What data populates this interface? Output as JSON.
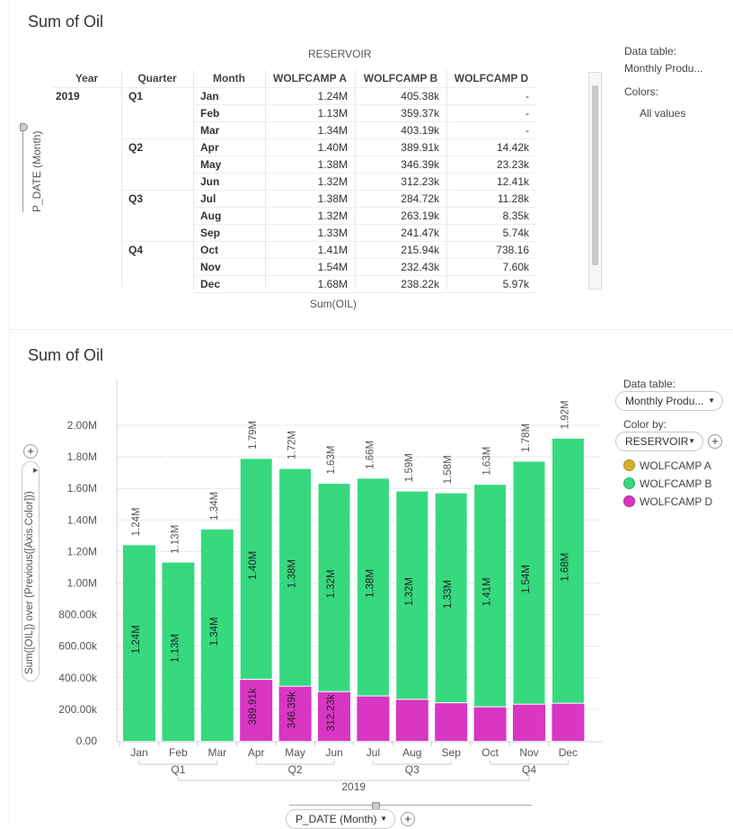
{
  "table_panel": {
    "title": "Sum of Oil",
    "column_group_header": "RESERVOIR",
    "headers": [
      "Year",
      "Quarter",
      "Month",
      "WOLFCAMP A",
      "WOLFCAMP B",
      "WOLFCAMP D"
    ],
    "row_axis_label": "P_DATE (Month)",
    "footer": "Sum(OIL)",
    "year": "2019",
    "quarters": [
      "Q1",
      "Q2",
      "Q3",
      "Q4"
    ],
    "rows": [
      [
        "Jan",
        "1.24M",
        "405.38k",
        "-"
      ],
      [
        "Feb",
        "1.13M",
        "359.37k",
        "-"
      ],
      [
        "Mar",
        "1.34M",
        "403.19k",
        "-"
      ],
      [
        "Apr",
        "1.40M",
        "389.91k",
        "14.42k"
      ],
      [
        "May",
        "1.38M",
        "346.39k",
        "23.23k"
      ],
      [
        "Jun",
        "1.32M",
        "312.23k",
        "12.41k"
      ],
      [
        "Jul",
        "1.38M",
        "284.72k",
        "11.28k"
      ],
      [
        "Aug",
        "1.32M",
        "263.19k",
        "8.35k"
      ],
      [
        "Sep",
        "1.33M",
        "241.47k",
        "5.74k"
      ],
      [
        "Oct",
        "1.41M",
        "215.94k",
        "738.16"
      ],
      [
        "Nov",
        "1.54M",
        "232.43k",
        "7.60k"
      ],
      [
        "Dec",
        "1.68M",
        "238.22k",
        "5.97k"
      ]
    ],
    "side": {
      "data_table_label": "Data table:",
      "data_table_value": "Monthly Produ...",
      "colors_label": "Colors:",
      "colors_value": "All values"
    }
  },
  "chart_panel": {
    "title": "Sum of Oil",
    "side": {
      "data_table_label": "Data table:",
      "data_table_value": "Monthly Produ...",
      "color_by_label": "Color by:",
      "color_by_value": "RESERVOIR"
    },
    "legend": [
      {
        "name": "WOLFCAMP A",
        "color": "#d4b02a"
      },
      {
        "name": "WOLFCAMP B",
        "color": "#37d97f"
      },
      {
        "name": "WOLFCAMP D",
        "color": "#d936c3"
      }
    ],
    "x_axis_selector": "P_DATE (Month)"
  },
  "chart_data": {
    "type": "bar",
    "stacked": true,
    "ylabel": "Sum([OIL]) over (Previous([Axis.Color]))",
    "ylim": [
      0,
      2000000
    ],
    "yticks": [
      "0.00",
      "200.00k",
      "400.00k",
      "600.00k",
      "800.00k",
      "1.00M",
      "1.20M",
      "1.40M",
      "1.60M",
      "1.80M",
      "2.00M"
    ],
    "grid": true,
    "categories": [
      "Jan",
      "Feb",
      "Mar",
      "Apr",
      "May",
      "Jun",
      "Jul",
      "Aug",
      "Sep",
      "Oct",
      "Nov",
      "Dec"
    ],
    "quarters": [
      "Q1",
      "Q2",
      "Q3",
      "Q4"
    ],
    "year": "2019",
    "series": [
      {
        "color": "#d936c3",
        "values": [
          0,
          0,
          0,
          389910,
          346390,
          312230,
          284720,
          263190,
          241470,
          215940,
          232430,
          238220
        ],
        "labels": [
          "",
          "",
          "",
          "389.91k",
          "346.39k",
          "312.23k",
          "",
          "",
          "",
          "",
          "",
          ""
        ]
      },
      {
        "color": "#37d97f",
        "values": [
          1240000,
          1130000,
          1340000,
          1400000,
          1380000,
          1320000,
          1380000,
          1320000,
          1330000,
          1410000,
          1540000,
          1680000
        ],
        "labels": [
          "1.24M",
          "1.13M",
          "1.34M",
          "1.40M",
          "1.38M",
          "1.32M",
          "1.38M",
          "1.32M",
          "1.33M",
          "1.41M",
          "1.54M",
          "1.68M"
        ]
      }
    ],
    "totals": [
      "1.24M",
      "1.13M",
      "1.34M",
      "1.79M",
      "1.72M",
      "1.63M",
      "1.66M",
      "1.59M",
      "1.58M",
      "1.63M",
      "1.78M",
      "1.92M"
    ],
    "legend": "right"
  }
}
